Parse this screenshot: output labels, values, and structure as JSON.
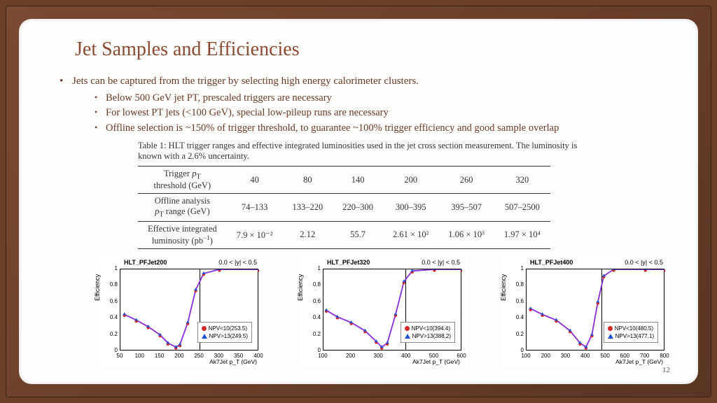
{
  "title": "Jet Samples and Efficiencies",
  "bullets": {
    "main": "Jets can be captured from the trigger by selecting high energy calorimeter clusters.",
    "sub1": "Below 500 GeV jet PT, prescaled triggers are necessary",
    "sub2": "For lowest PT jets (<100 GeV), special low-pileup runs are necessary",
    "sub3": "Offline selection is ~150% of trigger threshold, to guarantee ~100% trigger efficiency and good sample overlap"
  },
  "table": {
    "caption": "Table 1: HLT trigger ranges and effective integrated luminosities used in the jet cross section measurement. The luminosity is known with a 2.6% uncertainty.",
    "rows": {
      "r1": {
        "label": "Trigger p_T threshold (GeV)",
        "c": [
          "40",
          "80",
          "140",
          "200",
          "260",
          "320"
        ]
      },
      "r2": {
        "label": "Offline analysis p_T range (GeV)",
        "c": [
          "74–133",
          "133–220",
          "220–300",
          "300–395",
          "395–507",
          "507–2500"
        ]
      },
      "r3": {
        "label": "Effective integrated luminosity (pb⁻¹)",
        "c": [
          "7.9 × 10⁻²",
          "2.12",
          "55.7",
          "2.61 × 10²",
          "1.06 × 10³",
          "1.97 × 10⁴"
        ]
      }
    }
  },
  "charts": [
    {
      "title": "HLT_PFJet200",
      "sub": "0.0 < |y| <  0.5",
      "ylabel": "Efficiency",
      "xlabel": "Ak7Jet p_T (GeV)",
      "yticks": [
        "0",
        "0.2",
        "0.4",
        "0.6",
        "0.8",
        "1"
      ],
      "xticks": [
        "50",
        "100",
        "150",
        "200",
        "250",
        "300",
        "350",
        "400"
      ],
      "xrange": [
        50,
        400
      ],
      "vline_x": 250,
      "legend": {
        "a": "NPV<10(253.5)",
        "b": "NPV>13(249.5)"
      },
      "curve": [
        [
          60,
          0.45
        ],
        [
          90,
          0.38
        ],
        [
          120,
          0.3
        ],
        [
          150,
          0.2
        ],
        [
          170,
          0.1
        ],
        [
          190,
          0.05
        ],
        [
          200,
          0.08
        ],
        [
          220,
          0.35
        ],
        [
          240,
          0.75
        ],
        [
          260,
          0.95
        ],
        [
          300,
          1.0
        ],
        [
          400,
          1.0
        ]
      ],
      "colors": {
        "red": "#d62728",
        "blue": "#1f4fd6",
        "line": "#8a2be2",
        "bg": "#ffffff"
      }
    },
    {
      "title": "HLT_PFJet320",
      "sub": "0.0 < |y| <  0.5",
      "ylabel": "Efficiency",
      "xlabel": "Ak7Jet p_T (GeV)",
      "yticks": [
        "0",
        "0.2",
        "0.4",
        "0.6",
        "0.8",
        "1"
      ],
      "xticks": [
        "100",
        "200",
        "300",
        "400",
        "500",
        "600"
      ],
      "xrange": [
        100,
        600
      ],
      "vline_x": 395,
      "legend": {
        "a": "NPV<10(394.4)",
        "b": "NPV>13(388.2)"
      },
      "curve": [
        [
          110,
          0.5
        ],
        [
          150,
          0.42
        ],
        [
          200,
          0.35
        ],
        [
          250,
          0.25
        ],
        [
          290,
          0.12
        ],
        [
          310,
          0.05
        ],
        [
          330,
          0.1
        ],
        [
          360,
          0.45
        ],
        [
          390,
          0.85
        ],
        [
          420,
          0.98
        ],
        [
          500,
          1.0
        ],
        [
          600,
          1.0
        ]
      ],
      "colors": {
        "red": "#d62728",
        "blue": "#1f4fd6",
        "line": "#8a2be2",
        "bg": "#ffffff"
      }
    },
    {
      "title": "HLT_PFJet400",
      "sub": "0.0 < |y| <  0.5",
      "ylabel": "Efficiency",
      "xlabel": "Ak7Jet p_T (GeV)",
      "yticks": [
        "0",
        "0.2",
        "0.4",
        "0.6",
        "0.8",
        "1"
      ],
      "xticks": [
        "100",
        "200",
        "300",
        "400",
        "500",
        "600",
        "700",
        "800"
      ],
      "xrange": [
        100,
        800
      ],
      "vline_x": 480,
      "legend": {
        "a": "NPV<10(480.5)",
        "b": "NPV>13(477.1)"
      },
      "curve": [
        [
          120,
          0.52
        ],
        [
          180,
          0.45
        ],
        [
          250,
          0.38
        ],
        [
          320,
          0.25
        ],
        [
          370,
          0.1
        ],
        [
          400,
          0.05
        ],
        [
          430,
          0.2
        ],
        [
          460,
          0.6
        ],
        [
          490,
          0.92
        ],
        [
          540,
          1.0
        ],
        [
          700,
          1.0
        ],
        [
          800,
          1.0
        ]
      ],
      "colors": {
        "red": "#d62728",
        "blue": "#1f4fd6",
        "line": "#8a2be2",
        "bg": "#ffffff"
      }
    }
  ],
  "page_number": "12"
}
